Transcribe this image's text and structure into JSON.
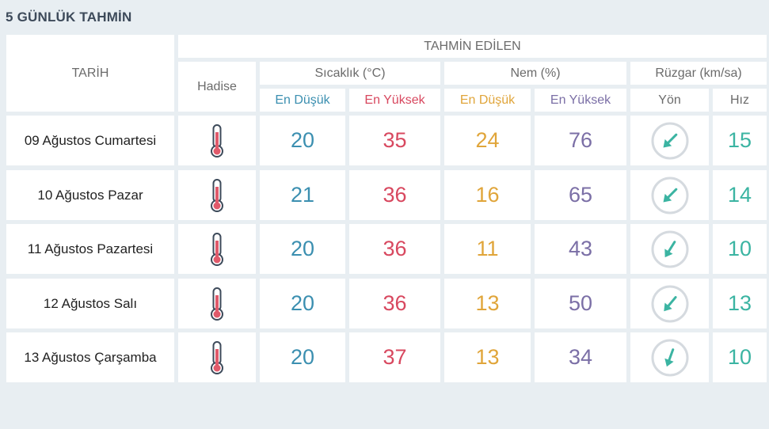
{
  "title": "5 GÜNLÜK TAHMİN",
  "header": {
    "tarih": "TARİH",
    "tahmin_edilen": "TAHMİN EDİLEN",
    "hadise": "Hadise",
    "sicaklik": "Sıcaklık (°C)",
    "nem": "Nem (%)",
    "ruzgar": "Rüzgar (km/sa)",
    "en_dusuk_1": "En Düşük",
    "en_yuksek_1": "En Yüksek",
    "en_dusuk_2": "En Düşük",
    "en_yuksek_2": "En Yüksek",
    "yon": "Yön",
    "hiz": "Hız"
  },
  "rows": [
    {
      "date": "09 Ağustos Cumartesi",
      "hadise_icon": "thermometer-icon",
      "temp_min": "20",
      "temp_max": "35",
      "hum_min": "24",
      "hum_max": "76",
      "wind_dir_icon": "wind-direction-icon",
      "wind_direction_deg": 225,
      "wind_speed": "15"
    },
    {
      "date": "10 Ağustos Pazar",
      "hadise_icon": "thermometer-icon",
      "temp_min": "21",
      "temp_max": "36",
      "hum_min": "16",
      "hum_max": "65",
      "wind_dir_icon": "wind-direction-icon",
      "wind_direction_deg": 225,
      "wind_speed": "14"
    },
    {
      "date": "11 Ağustos Pazartesi",
      "hadise_icon": "thermometer-icon",
      "temp_min": "20",
      "temp_max": "36",
      "hum_min": "11",
      "hum_max": "43",
      "wind_dir_icon": "wind-direction-icon",
      "wind_direction_deg": 212,
      "wind_speed": "10"
    },
    {
      "date": "12 Ağustos Salı",
      "hadise_icon": "thermometer-icon",
      "temp_min": "20",
      "temp_max": "36",
      "hum_min": "13",
      "hum_max": "50",
      "wind_dir_icon": "wind-direction-icon",
      "wind_direction_deg": 220,
      "wind_speed": "13"
    },
    {
      "date": "13 Ağustos Çarşamba",
      "hadise_icon": "thermometer-icon",
      "temp_min": "20",
      "temp_max": "37",
      "hum_min": "13",
      "hum_max": "34",
      "wind_dir_icon": "wind-direction-icon",
      "wind_direction_deg": 200,
      "wind_speed": "10"
    }
  ],
  "colors": {
    "blue": "#3b8fb0",
    "red": "#d8485f",
    "orange": "#e0a53a",
    "purple": "#7b6fa6",
    "teal": "#3bb4a2"
  }
}
